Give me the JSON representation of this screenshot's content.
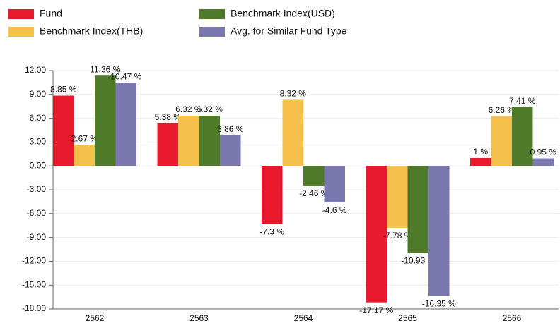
{
  "chart_data": {
    "type": "bar",
    "categories": [
      "2562",
      "2563",
      "2564",
      "2565",
      "2566"
    ],
    "series": [
      {
        "name": "Fund",
        "color": "#e8192c",
        "values": [
          8.85,
          5.38,
          -7.3,
          -17.17,
          1
        ],
        "value_labels": [
          "8.85 %",
          "5.38 %",
          "-7.3 %",
          "-17.17 %",
          "1 %"
        ]
      },
      {
        "name": "Benchmark Index(THB)",
        "color": "#f5c04a",
        "values": [
          2.67,
          6.32,
          8.32,
          -7.78,
          6.26
        ],
        "value_labels": [
          "2.67 %",
          "6.32 %",
          "8.32 %",
          "-7.78 %",
          "6.26 %"
        ]
      },
      {
        "name": "Benchmark Index(USD)",
        "color": "#4e7a2a",
        "values": [
          11.36,
          6.32,
          -2.46,
          -10.93,
          7.41
        ],
        "value_labels": [
          "11.36 %",
          "6.32 %",
          "-2.46 %",
          "-10.93 %",
          "7.41 %"
        ]
      },
      {
        "name": "Avg. for Similar Fund Type",
        "color": "#7b78b0",
        "values": [
          10.47,
          3.86,
          -4.6,
          -16.35,
          0.95
        ],
        "value_labels": [
          "10.47 %",
          "3.86 %",
          "-4.6 %",
          "-16.35 %",
          "0.95 %"
        ]
      }
    ],
    "ylim": [
      -18,
      12
    ],
    "yticks": [
      {
        "value": 12,
        "label": "12.00"
      },
      {
        "value": 9,
        "label": "9.00"
      },
      {
        "value": 6,
        "label": "6.00"
      },
      {
        "value": 3,
        "label": "3.00"
      },
      {
        "value": 0,
        "label": "0.00"
      },
      {
        "value": -3,
        "label": "-3.00"
      },
      {
        "value": -6,
        "label": "-6.00"
      },
      {
        "value": -9,
        "label": "-9.00"
      },
      {
        "value": -12,
        "label": "-12.00"
      },
      {
        "value": -15,
        "label": "-15.00"
      },
      {
        "value": -18,
        "label": "-18.00"
      }
    ],
    "grid": true
  }
}
